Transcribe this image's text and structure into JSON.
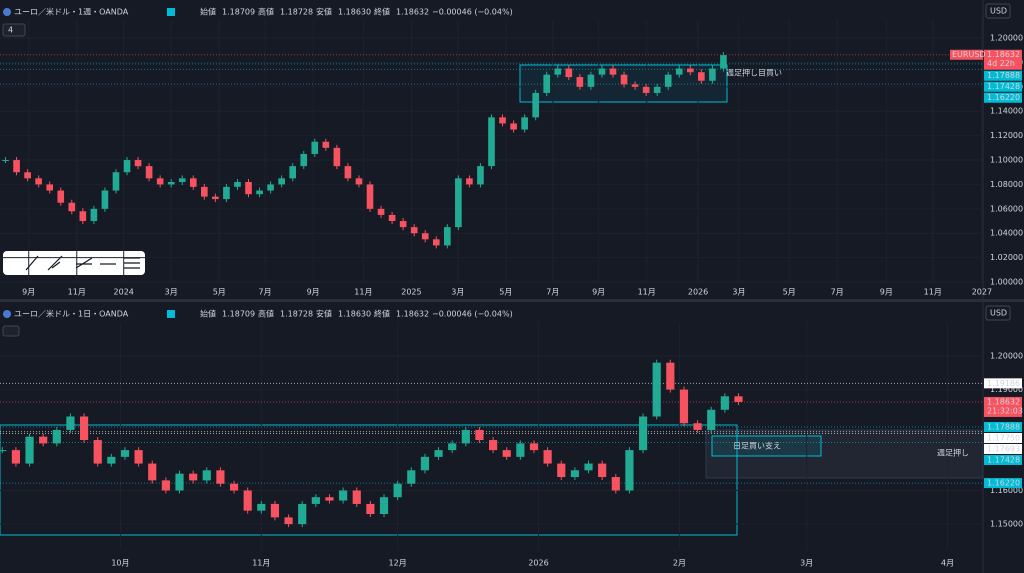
{
  "currency": "USD",
  "layout_count": "4",
  "chart_data": [
    {
      "type": "candlestick",
      "title": "ユーロ／米ドル・1週・OANDA",
      "ohlc_header": [
        {
          "label": "始値",
          "value": "1.18709"
        },
        {
          "label": "高値",
          "value": "1.18728"
        },
        {
          "label": "安値",
          "value": "1.18630"
        },
        {
          "label": "終値",
          "value": "1.18632"
        }
      ],
      "change": "−0.00046 (−0.04%)",
      "symbol_tag": "EURUSD",
      "annotations": [
        "週足押し目買い"
      ],
      "x": [
        0,
        2,
        4,
        6,
        8,
        10,
        12,
        14,
        16,
        18,
        20,
        22,
        24,
        26,
        28,
        30,
        32,
        34,
        36,
        38,
        40,
        42,
        44,
        46,
        48,
        50,
        52,
        54,
        56,
        58,
        60,
        62,
        64,
        66,
        68,
        70,
        72,
        74,
        76,
        78,
        80,
        82,
        84,
        86,
        88,
        90,
        92,
        94,
        96,
        98,
        100,
        102,
        104,
        106,
        108,
        110,
        112,
        114,
        116,
        118,
        120,
        122,
        124,
        126,
        128,
        130
      ],
      "values": [
        1.1,
        1.09,
        1.085,
        1.08,
        1.075,
        1.065,
        1.058,
        1.05,
        1.06,
        1.075,
        1.09,
        1.1,
        1.095,
        1.085,
        1.08,
        1.082,
        1.085,
        1.078,
        1.07,
        1.068,
        1.078,
        1.082,
        1.072,
        1.075,
        1.08,
        1.085,
        1.095,
        1.105,
        1.115,
        1.11,
        1.095,
        1.085,
        1.08,
        1.06,
        1.055,
        1.05,
        1.045,
        1.04,
        1.035,
        1.03,
        1.045,
        1.085,
        1.08,
        1.095,
        1.135,
        1.13,
        1.125,
        1.135,
        1.155,
        1.17,
        1.175,
        1.168,
        1.16,
        1.17,
        1.175,
        1.17,
        1.162,
        1.16,
        1.155,
        1.16,
        1.17,
        1.175,
        1.172,
        1.165,
        1.175,
        1.186
      ],
      "up_color": "#22ab94",
      "down_color": "#f7525f",
      "xlim": [
        -1,
        177
      ],
      "xticks": [
        {
          "value": 4.2,
          "label": "9月"
        },
        {
          "value": 12.9,
          "label": "11月"
        },
        {
          "value": 21.4,
          "label": "2024"
        },
        {
          "value": 30,
          "label": "3月"
        },
        {
          "value": 38.7,
          "label": "5月"
        },
        {
          "value": 47,
          "label": "7月"
        },
        {
          "value": 55.7,
          "label": "9月"
        },
        {
          "value": 64.8,
          "label": "11月"
        },
        {
          "value": 73.5,
          "label": "2025"
        },
        {
          "value": 81.9,
          "label": "3月"
        },
        {
          "value": 90.6,
          "label": "5月"
        },
        {
          "value": 99.1,
          "label": "7月"
        },
        {
          "value": 107.4,
          "label": "9月"
        },
        {
          "value": 116.1,
          "label": "11月"
        },
        {
          "value": 125.4,
          "label": "2026"
        },
        {
          "value": 132.8,
          "label": "3月"
        },
        {
          "value": 141.9,
          "label": "5月"
        },
        {
          "value": 150.6,
          "label": "7月"
        },
        {
          "value": 159.5,
          "label": "9月"
        },
        {
          "value": 167.9,
          "label": "11月"
        },
        {
          "value": 176.8,
          "label": "2027"
        }
      ],
      "ylim": [
        0.9992,
        1.2148
      ],
      "yticks": [
        {
          "value": 1.0,
          "label": "1.00000"
        },
        {
          "value": 1.02,
          "label": "1.02000"
        },
        {
          "value": 1.04,
          "label": "1.04000"
        },
        {
          "value": 1.06,
          "label": "1.06000"
        },
        {
          "value": 1.08,
          "label": "1.08000"
        },
        {
          "value": 1.1,
          "label": "1.10000"
        },
        {
          "value": 1.12,
          "label": "1.12000"
        },
        {
          "value": 1.14,
          "label": "1.14000"
        },
        {
          "value": 1.16,
          "label": "1.16000"
        },
        {
          "value": 1.18,
          "label": "1.18000"
        },
        {
          "value": 1.2,
          "label": "1.20000"
        }
      ],
      "price_tags": [
        {
          "value": 1.18632,
          "label": "1.18632",
          "sub": "4d 22h",
          "color": "#f7525f"
        },
        {
          "value": 1.17888,
          "label": "1.17888",
          "color": "#00bcd4"
        },
        {
          "value": 1.17428,
          "label": "1.17428",
          "color": "#00bcd4"
        },
        {
          "value": 1.1622,
          "label": "1.16220",
          "color": "#00bcd4"
        }
      ]
    },
    {
      "type": "candlestick",
      "title": "ユーロ／米ドル・1日・OANDA",
      "ohlc_header": [
        {
          "label": "始値",
          "value": "1.18709"
        },
        {
          "label": "高値",
          "value": "1.18728"
        },
        {
          "label": "安値",
          "value": "1.18630"
        },
        {
          "label": "終値",
          "value": "1.18632"
        }
      ],
      "change": "−0.00046 (−0.04%)",
      "annotations": [
        "日足買い支え",
        "週足押し"
      ],
      "x": [
        4,
        7,
        10,
        13,
        16,
        19,
        22,
        25,
        28,
        31,
        34,
        37,
        40,
        43,
        46,
        49,
        52,
        55,
        58,
        61,
        64,
        67,
        70,
        73,
        76,
        79,
        82,
        85,
        88,
        91,
        94,
        97,
        100,
        103,
        106,
        109,
        112,
        115,
        118,
        121,
        124,
        127,
        130,
        133,
        136,
        139,
        142,
        145,
        148,
        151,
        154,
        157,
        160,
        163,
        166
      ],
      "values": [
        1.172,
        1.168,
        1.176,
        1.174,
        1.178,
        1.182,
        1.175,
        1.168,
        1.17,
        1.172,
        1.168,
        1.163,
        1.16,
        1.165,
        1.163,
        1.166,
        1.162,
        1.16,
        1.154,
        1.156,
        1.152,
        1.15,
        1.156,
        1.158,
        1.157,
        1.16,
        1.156,
        1.153,
        1.158,
        1.162,
        1.166,
        1.17,
        1.172,
        1.174,
        1.178,
        1.175,
        1.172,
        1.17,
        1.174,
        1.172,
        1.168,
        1.164,
        1.166,
        1.168,
        1.164,
        1.16,
        1.172,
        1.182,
        1.198,
        1.19,
        1.18,
        1.178,
        1.184,
        1.188,
        1.1863
      ],
      "up_color": "#22ab94",
      "down_color": "#f7525f",
      "xlim": [
        3.5,
        219.8
      ],
      "xticks": [
        {
          "value": 30,
          "label": "10月"
        },
        {
          "value": 61,
          "label": "11月"
        },
        {
          "value": 91,
          "label": "12月"
        },
        {
          "value": 122,
          "label": "2026"
        },
        {
          "value": 153,
          "label": "2月"
        },
        {
          "value": 181,
          "label": "3月"
        },
        {
          "value": 212,
          "label": "4月"
        }
      ],
      "ylim": [
        1.1423,
        1.2101
      ],
      "yticks": [
        {
          "value": 1.15,
          "label": "1.15000"
        },
        {
          "value": 1.16,
          "label": "1.16000"
        },
        {
          "value": 1.19,
          "label": "1.19000"
        },
        {
          "value": 1.2,
          "label": "1.20000"
        }
      ],
      "price_tags": [
        {
          "value": 1.19186,
          "label": "1.19186",
          "color": "#ffffff"
        },
        {
          "value": 1.18632,
          "label": "1.18632",
          "sub": "21:32:03",
          "color": "#f7525f"
        },
        {
          "value": 1.17888,
          "label": "1.17888",
          "color": "#00bcd4"
        },
        {
          "value": 1.1775,
          "label": "1.17750",
          "color": "#ffffff"
        },
        {
          "value": 1.17693,
          "label": "1.17693",
          "color": "#ffffff"
        },
        {
          "value": 1.17428,
          "label": "1.17428",
          "color": "#00bcd4"
        },
        {
          "value": 1.1622,
          "label": "1.16220",
          "color": "#00bcd4"
        }
      ]
    }
  ]
}
